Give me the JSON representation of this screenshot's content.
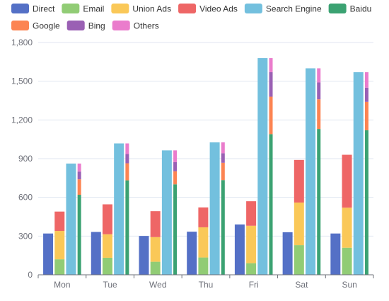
{
  "colors": {
    "direct": "#5470c6",
    "email": "#91cc75",
    "union_ads": "#fac858",
    "video_ads": "#ee6666",
    "search_engine": "#73c0de",
    "baidu": "#3ba272",
    "google": "#fc8452",
    "bing": "#9a60b4",
    "others": "#ea7ccc"
  },
  "chart_data": {
    "type": "bar",
    "categories": [
      "Mon",
      "Tue",
      "Wed",
      "Thu",
      "Fri",
      "Sat",
      "Sun"
    ],
    "ylim": [
      0,
      1800
    ],
    "yticks": [
      "0",
      "300",
      "600",
      "900",
      "1,200",
      "1,500",
      "1,800"
    ],
    "ytick_values": [
      0,
      300,
      600,
      900,
      1200,
      1500,
      1800
    ],
    "legend_position": "top",
    "grid": true,
    "legend": [
      "Direct",
      "Email",
      "Union Ads",
      "Video Ads",
      "Search Engine",
      "Baidu",
      "Google",
      "Bing",
      "Others"
    ],
    "series": [
      {
        "name": "Direct",
        "stack": "direct",
        "color_key": "direct",
        "values": [
          320,
          332,
          301,
          334,
          390,
          330,
          320
        ]
      },
      {
        "name": "Email",
        "stack": "ad",
        "color_key": "email",
        "values": [
          120,
          132,
          101,
          134,
          90,
          230,
          210
        ]
      },
      {
        "name": "Union Ads",
        "stack": "ad",
        "color_key": "union_ads",
        "values": [
          220,
          182,
          191,
          234,
          290,
          330,
          310
        ]
      },
      {
        "name": "Video Ads",
        "stack": "ad",
        "color_key": "video_ads",
        "values": [
          150,
          232,
          201,
          154,
          190,
          330,
          410
        ]
      },
      {
        "name": "Search Engine",
        "stack": "search",
        "color_key": "search_engine",
        "values": [
          862,
          1018,
          964,
          1026,
          1679,
          1600,
          1570
        ]
      },
      {
        "name": "Baidu",
        "stack": "search_brands",
        "color_key": "baidu",
        "values": [
          620,
          732,
          701,
          734,
          1090,
          1130,
          1120
        ]
      },
      {
        "name": "Google",
        "stack": "search_brands",
        "color_key": "google",
        "values": [
          120,
          132,
          101,
          134,
          290,
          230,
          220
        ]
      },
      {
        "name": "Bing",
        "stack": "search_brands",
        "color_key": "bing",
        "values": [
          60,
          72,
          71,
          74,
          190,
          130,
          110
        ]
      },
      {
        "name": "Others",
        "stack": "search_brands",
        "color_key": "others",
        "values": [
          62,
          82,
          91,
          84,
          109,
          110,
          120
        ]
      }
    ]
  }
}
